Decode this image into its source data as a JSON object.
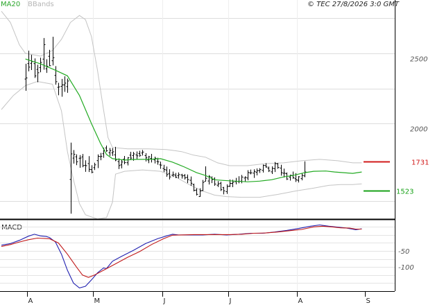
{
  "chart_data": [
    {
      "type": "ohlc",
      "legend": [
        {
          "name": "MA20",
          "color": "#22aa22"
        },
        {
          "name": "BBands",
          "color": "#b8b8b8"
        }
      ],
      "credit": "© TEC 27/8/2026 3:0 GMT",
      "y_ticks": [
        {
          "value": 2500,
          "label": "2500"
        },
        {
          "value": 2000,
          "label": "2000"
        }
      ],
      "ylim": [
        1310,
        2870
      ],
      "x_months": [
        {
          "label": "A",
          "x": 0.5
        },
        {
          "label": "M",
          "x": 22.5
        },
        {
          "label": "J",
          "x": 45.5
        },
        {
          "label": "J",
          "x": 67.5
        },
        {
          "label": "A",
          "x": 90.5
        },
        {
          "label": "S",
          "x": 113
        }
      ],
      "x_range": [
        -8,
        123
      ],
      "levels": [
        {
          "label": "1731",
          "value": 1731,
          "color": "#d11a1a"
        },
        {
          "label": "1523",
          "value": 1523,
          "color": "#17a117"
        }
      ],
      "ohlc": [
        [
          2317,
          2426,
          2233,
          2325
        ],
        [
          2427,
          2519,
          2372,
          2402
        ],
        [
          2429,
          2489,
          2381,
          2441
        ],
        [
          2427,
          2464,
          2325,
          2339
        ],
        [
          2386,
          2419,
          2294,
          2362
        ],
        [
          2398,
          2469,
          2365,
          2435
        ],
        [
          2459,
          2609,
          2384,
          2562
        ],
        [
          2390,
          2458,
          2361,
          2408
        ],
        [
          2479,
          2525,
          2408,
          2412
        ],
        [
          2447,
          2618,
          2414,
          2469
        ],
        [
          2343,
          2409,
          2277,
          2298
        ],
        [
          2258,
          2290,
          2202,
          2261
        ],
        [
          2265,
          2318,
          2191,
          2275
        ],
        [
          2275,
          2336,
          2226,
          2288
        ],
        [
          2263,
          2320,
          2219,
          2303
        ],
        [
          1602,
          1864,
          1358,
          1784
        ],
        [
          1754,
          1811,
          1715,
          1781
        ],
        [
          1763,
          1781,
          1704,
          1728
        ],
        [
          1753,
          1775,
          1685,
          1754
        ],
        [
          1763,
          1783,
          1689,
          1700
        ],
        [
          1703,
          1738,
          1656,
          1700
        ],
        [
          1715,
          1768,
          1655,
          1674
        ],
        [
          1672,
          1703,
          1646,
          1654
        ],
        [
          1686,
          1721,
          1669,
          1706
        ],
        [
          1736,
          1780,
          1683,
          1767
        ],
        [
          1764,
          1791,
          1739,
          1767
        ],
        [
          1785,
          1828,
          1756,
          1812
        ],
        [
          1826,
          1843,
          1798,
          1806
        ],
        [
          1792,
          1826,
          1770,
          1808
        ],
        [
          1791,
          1825,
          1770,
          1799
        ],
        [
          1777,
          1834,
          1732,
          1740
        ],
        [
          1729,
          1752,
          1676,
          1701
        ],
        [
          1706,
          1743,
          1681,
          1726
        ],
        [
          1747,
          1769,
          1710,
          1722
        ],
        [
          1721,
          1761,
          1702,
          1756
        ],
        [
          1775,
          1799,
          1744,
          1754
        ],
        [
          1772,
          1798,
          1735,
          1784
        ],
        [
          1776,
          1801,
          1746,
          1770
        ],
        [
          1787,
          1806,
          1763,
          1773
        ],
        [
          1790,
          1812,
          1772,
          1797
        ],
        [
          1772,
          1789,
          1730,
          1756
        ],
        [
          1740,
          1770,
          1718,
          1763
        ],
        [
          1752,
          1784,
          1723,
          1746
        ],
        [
          1741,
          1764,
          1716,
          1753
        ],
        [
          1730,
          1756,
          1707,
          1727
        ],
        [
          1706,
          1729,
          1678,
          1704
        ],
        [
          1680,
          1706,
          1655,
          1673
        ],
        [
          1669,
          1694,
          1621,
          1636
        ],
        [
          1645,
          1675,
          1602,
          1620
        ],
        [
          1633,
          1658,
          1620,
          1636
        ],
        [
          1632,
          1648,
          1612,
          1617
        ],
        [
          1629,
          1652,
          1609,
          1636
        ],
        [
          1634,
          1642,
          1608,
          1627
        ],
        [
          1630,
          1640,
          1601,
          1613
        ],
        [
          1617,
          1637,
          1576,
          1601
        ],
        [
          1596,
          1623,
          1557,
          1575
        ],
        [
          1565,
          1572,
          1517,
          1524
        ],
        [
          1526,
          1539,
          1488,
          1496
        ],
        [
          1480,
          1539,
          1478,
          1520
        ],
        [
          1523,
          1598,
          1519,
          1581
        ],
        [
          1589,
          1695,
          1588,
          1610
        ],
        [
          1591,
          1633,
          1566,
          1623
        ],
        [
          1613,
          1624,
          1576,
          1601
        ],
        [
          1605,
          1617,
          1557,
          1569
        ],
        [
          1561,
          1590,
          1548,
          1570
        ],
        [
          1575,
          1585,
          1520,
          1529
        ],
        [
          1543,
          1549,
          1496,
          1521
        ],
        [
          1515,
          1567,
          1499,
          1552
        ],
        [
          1554,
          1602,
          1548,
          1574
        ],
        [
          1574,
          1600,
          1547,
          1582
        ],
        [
          1586,
          1613,
          1567,
          1589
        ],
        [
          1587,
          1625,
          1575,
          1589
        ],
        [
          1590,
          1634,
          1575,
          1619
        ],
        [
          1612,
          1624,
          1589,
          1617
        ],
        [
          1612,
          1668,
          1596,
          1651
        ],
        [
          1648,
          1672,
          1638,
          1649
        ],
        [
          1647,
          1674,
          1613,
          1659
        ],
        [
          1653,
          1680,
          1631,
          1664
        ],
        [
          1665,
          1682,
          1648,
          1672
        ],
        [
          1667,
          1708,
          1651,
          1702
        ],
        [
          1700,
          1718,
          1685,
          1691
        ],
        [
          1683,
          1694,
          1655,
          1664
        ],
        [
          1656,
          1695,
          1641,
          1681
        ],
        [
          1679,
          1726,
          1655,
          1715
        ],
        [
          1713,
          1719,
          1678,
          1687
        ],
        [
          1683,
          1706,
          1629,
          1650
        ],
        [
          1646,
          1679,
          1616,
          1647
        ],
        [
          1643,
          1652,
          1598,
          1605
        ],
        [
          1618,
          1635,
          1594,
          1632
        ],
        [
          1628,
          1658,
          1607,
          1614
        ],
        [
          1607,
          1647,
          1584,
          1599
        ],
        [
          1596,
          1626,
          1580,
          1621
        ],
        [
          1608,
          1644,
          1596,
          1631
        ],
        [
          1627,
          1731,
          1618,
          1655
        ]
      ],
      "ma20": [
        [
          0,
          2460
        ],
        [
          5,
          2425
        ],
        [
          10,
          2380
        ],
        [
          14,
          2340
        ],
        [
          18,
          2200
        ],
        [
          22,
          2000
        ],
        [
          25,
          1860
        ],
        [
          27,
          1780
        ],
        [
          29,
          1750
        ],
        [
          33,
          1740
        ],
        [
          37,
          1745
        ],
        [
          41,
          1745
        ],
        [
          45,
          1750
        ],
        [
          49,
          1725
        ],
        [
          53,
          1690
        ],
        [
          57,
          1650
        ],
        [
          60,
          1630
        ],
        [
          63,
          1600
        ],
        [
          66,
          1595
        ],
        [
          70,
          1590
        ],
        [
          74,
          1585
        ],
        [
          78,
          1590
        ],
        [
          82,
          1600
        ],
        [
          86,
          1620
        ],
        [
          89,
          1630
        ],
        [
          93,
          1650
        ],
        [
          96,
          1660
        ],
        [
          100,
          1662
        ],
        [
          103,
          1655
        ],
        [
          106,
          1650
        ],
        [
          109,
          1645
        ],
        [
          112,
          1655
        ]
      ],
      "bb_upper": [
        [
          -8,
          2800
        ],
        [
          -5,
          2720
        ],
        [
          -2,
          2560
        ],
        [
          0,
          2500
        ],
        [
          5,
          2480
        ],
        [
          9,
          2520
        ],
        [
          12,
          2600
        ],
        [
          15,
          2720
        ],
        [
          18,
          2770
        ],
        [
          20,
          2740
        ],
        [
          22,
          2620
        ],
        [
          24,
          2380
        ],
        [
          26,
          2100
        ],
        [
          27.5,
          1900
        ],
        [
          29,
          1830
        ],
        [
          34,
          1820
        ],
        [
          41,
          1820
        ],
        [
          47,
          1815
        ],
        [
          52,
          1800
        ],
        [
          56,
          1775
        ],
        [
          60,
          1760
        ],
        [
          64,
          1720
        ],
        [
          68,
          1700
        ],
        [
          74,
          1700
        ],
        [
          80,
          1715
        ],
        [
          86,
          1720
        ],
        [
          92,
          1735
        ],
        [
          98,
          1745
        ],
        [
          104,
          1735
        ],
        [
          109,
          1720
        ],
        [
          112,
          1720
        ]
      ],
      "bb_lower": [
        [
          -8,
          2100
        ],
        [
          -4,
          2200
        ],
        [
          0,
          2270
        ],
        [
          4,
          2300
        ],
        [
          9,
          2280
        ],
        [
          12,
          2090
        ],
        [
          14,
          1800
        ],
        [
          16,
          1600
        ],
        [
          18,
          1430
        ],
        [
          20,
          1350
        ],
        [
          24,
          1320
        ],
        [
          27,
          1330
        ],
        [
          29,
          1440
        ],
        [
          30,
          1640
        ],
        [
          33,
          1660
        ],
        [
          39,
          1670
        ],
        [
          45,
          1660
        ],
        [
          50,
          1620
        ],
        [
          55,
          1560
        ],
        [
          59,
          1520
        ],
        [
          63,
          1490
        ],
        [
          67,
          1480
        ],
        [
          72,
          1475
        ],
        [
          78,
          1475
        ],
        [
          84,
          1495
        ],
        [
          90,
          1520
        ],
        [
          96,
          1540
        ],
        [
          101,
          1560
        ],
        [
          105,
          1565
        ],
        [
          109,
          1565
        ],
        [
          112,
          1570
        ]
      ]
    },
    {
      "type": "line",
      "title": "MACD",
      "y_ticks": [
        {
          "value": -50,
          "label": "-50"
        },
        {
          "value": -100,
          "label": "-100"
        }
      ],
      "ylim": [
        -175,
        45
      ],
      "series": [
        {
          "color": "#2020b0",
          "points": [
            [
              -8,
              -32
            ],
            [
              -5,
              -27
            ],
            [
              -2,
              -17
            ],
            [
              1,
              -4
            ],
            [
              3,
              2
            ],
            [
              5,
              -3
            ],
            [
              7,
              -5
            ],
            [
              8,
              -8
            ],
            [
              10,
              -22
            ],
            [
              12,
              -60
            ],
            [
              14,
              -110
            ],
            [
              16,
              -150
            ],
            [
              18,
              -165
            ],
            [
              20,
              -160
            ],
            [
              22,
              -140
            ],
            [
              24,
              -118
            ],
            [
              26,
              -103
            ],
            [
              27,
              -105
            ],
            [
              29,
              -82
            ],
            [
              32,
              -67
            ],
            [
              36,
              -48
            ],
            [
              40,
              -27
            ],
            [
              44,
              -12
            ],
            [
              47,
              -3
            ],
            [
              49,
              2
            ],
            [
              51,
              0
            ],
            [
              55,
              0
            ],
            [
              59,
              0
            ],
            [
              63,
              2
            ],
            [
              67,
              0
            ],
            [
              71,
              2
            ],
            [
              75,
              5
            ],
            [
              79,
              5
            ],
            [
              83,
              9
            ],
            [
              87,
              14
            ],
            [
              91,
              20
            ],
            [
              95,
              27
            ],
            [
              98,
              31
            ],
            [
              101,
              27
            ],
            [
              104,
              24
            ],
            [
              107,
              21
            ],
            [
              110,
              16
            ],
            [
              112,
              19
            ]
          ]
        },
        {
          "color": "#c01818",
          "points": [
            [
              -8,
              -36
            ],
            [
              -5,
              -30
            ],
            [
              -2,
              -22
            ],
            [
              1,
              -15
            ],
            [
              4,
              -10
            ],
            [
              8,
              -12
            ],
            [
              11,
              -25
            ],
            [
              14,
              -60
            ],
            [
              17,
              -100
            ],
            [
              19,
              -125
            ],
            [
              21,
              -132
            ],
            [
              23,
              -125
            ],
            [
              26,
              -110
            ],
            [
              30,
              -90
            ],
            [
              34,
              -70
            ],
            [
              38,
              -52
            ],
            [
              42,
              -30
            ],
            [
              46,
              -12
            ],
            [
              49,
              -1
            ],
            [
              52,
              0
            ],
            [
              56,
              1
            ],
            [
              60,
              1
            ],
            [
              64,
              1
            ],
            [
              68,
              1
            ],
            [
              72,
              2
            ],
            [
              76,
              5
            ],
            [
              80,
              6
            ],
            [
              84,
              9
            ],
            [
              88,
              13
            ],
            [
              92,
              17
            ],
            [
              96,
              25
            ],
            [
              99,
              27
            ],
            [
              102,
              25
            ],
            [
              105,
              22
            ],
            [
              108,
              21
            ],
            [
              110,
              18
            ],
            [
              112,
              18
            ]
          ]
        }
      ]
    }
  ]
}
